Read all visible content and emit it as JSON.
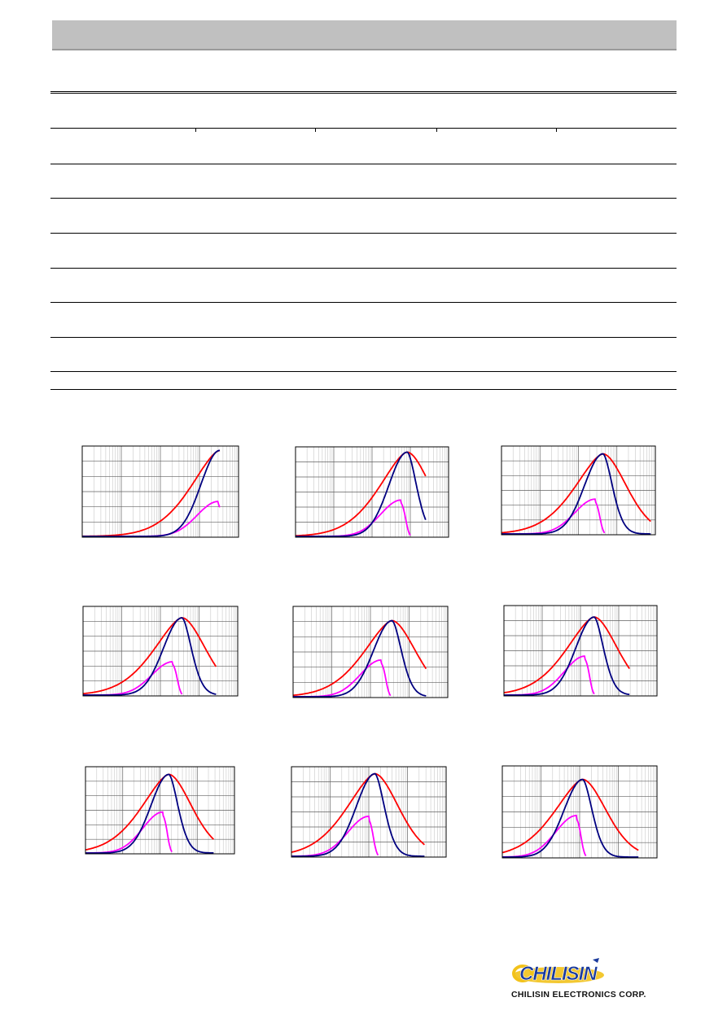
{
  "brand": {
    "logo_text": "CHILISIN",
    "company_name": "CHILISIN ELECTRONICS CORP.",
    "colors": {
      "logo_blue": "#1a3a9c",
      "logo_yellow": "#f2c21b"
    }
  },
  "table": {
    "row_count": 8,
    "header_tick_count": 4
  },
  "charts": {
    "series_colors": {
      "z": "#ff0000",
      "r": "#000080",
      "x": "#ff00ff"
    }
  },
  "chart_data": [
    {
      "type": "line",
      "x_scale": "log",
      "x_decades": 4,
      "grid": true,
      "peak": [
        0.88,
        0.96
      ],
      "x_end": 0.88,
      "cutoff_x": 0.9,
      "x_amp": 0.39,
      "x_tail_rise": true
    },
    {
      "type": "line",
      "x_scale": "log",
      "x_decades": 4,
      "grid": true,
      "peak": [
        0.73,
        0.95
      ],
      "x_end": 0.85,
      "cutoff_x": 0.72,
      "x_amp": 0.41
    },
    {
      "type": "line",
      "x_scale": "log",
      "x_decades": 4,
      "grid": true,
      "peak": [
        0.66,
        0.92
      ],
      "x_end": 0.97,
      "cutoff_x": 0.64,
      "x_amp": 0.4
    },
    {
      "type": "line",
      "x_scale": "log",
      "x_decades": 4,
      "grid": true,
      "peak": [
        0.64,
        0.88
      ],
      "x_end": 0.86,
      "cutoff_x": 0.61,
      "x_amp": 0.38
    },
    {
      "type": "line",
      "x_scale": "log",
      "x_decades": 4,
      "grid": true,
      "peak": [
        0.64,
        0.85
      ],
      "x_end": 0.86,
      "cutoff_x": 0.6,
      "x_amp": 0.41
    },
    {
      "type": "line",
      "x_scale": "log",
      "x_decades": 4,
      "grid": true,
      "peak": [
        0.59,
        0.88
      ],
      "x_end": 0.82,
      "cutoff_x": 0.56,
      "x_amp": 0.44
    },
    {
      "type": "line",
      "x_scale": "log",
      "x_decades": 4,
      "grid": true,
      "peak": [
        0.56,
        0.92
      ],
      "x_end": 0.86,
      "cutoff_x": 0.55,
      "x_amp": 0.48
    },
    {
      "type": "line",
      "x_scale": "log",
      "x_decades": 4,
      "grid": true,
      "peak": [
        0.54,
        0.93
      ],
      "x_end": 0.86,
      "cutoff_x": 0.53,
      "x_amp": 0.45
    },
    {
      "type": "line",
      "x_scale": "log",
      "x_decades": 4,
      "grid": true,
      "peak": [
        0.52,
        0.86
      ],
      "x_end": 0.88,
      "cutoff_x": 0.51,
      "x_amp": 0.46
    }
  ]
}
